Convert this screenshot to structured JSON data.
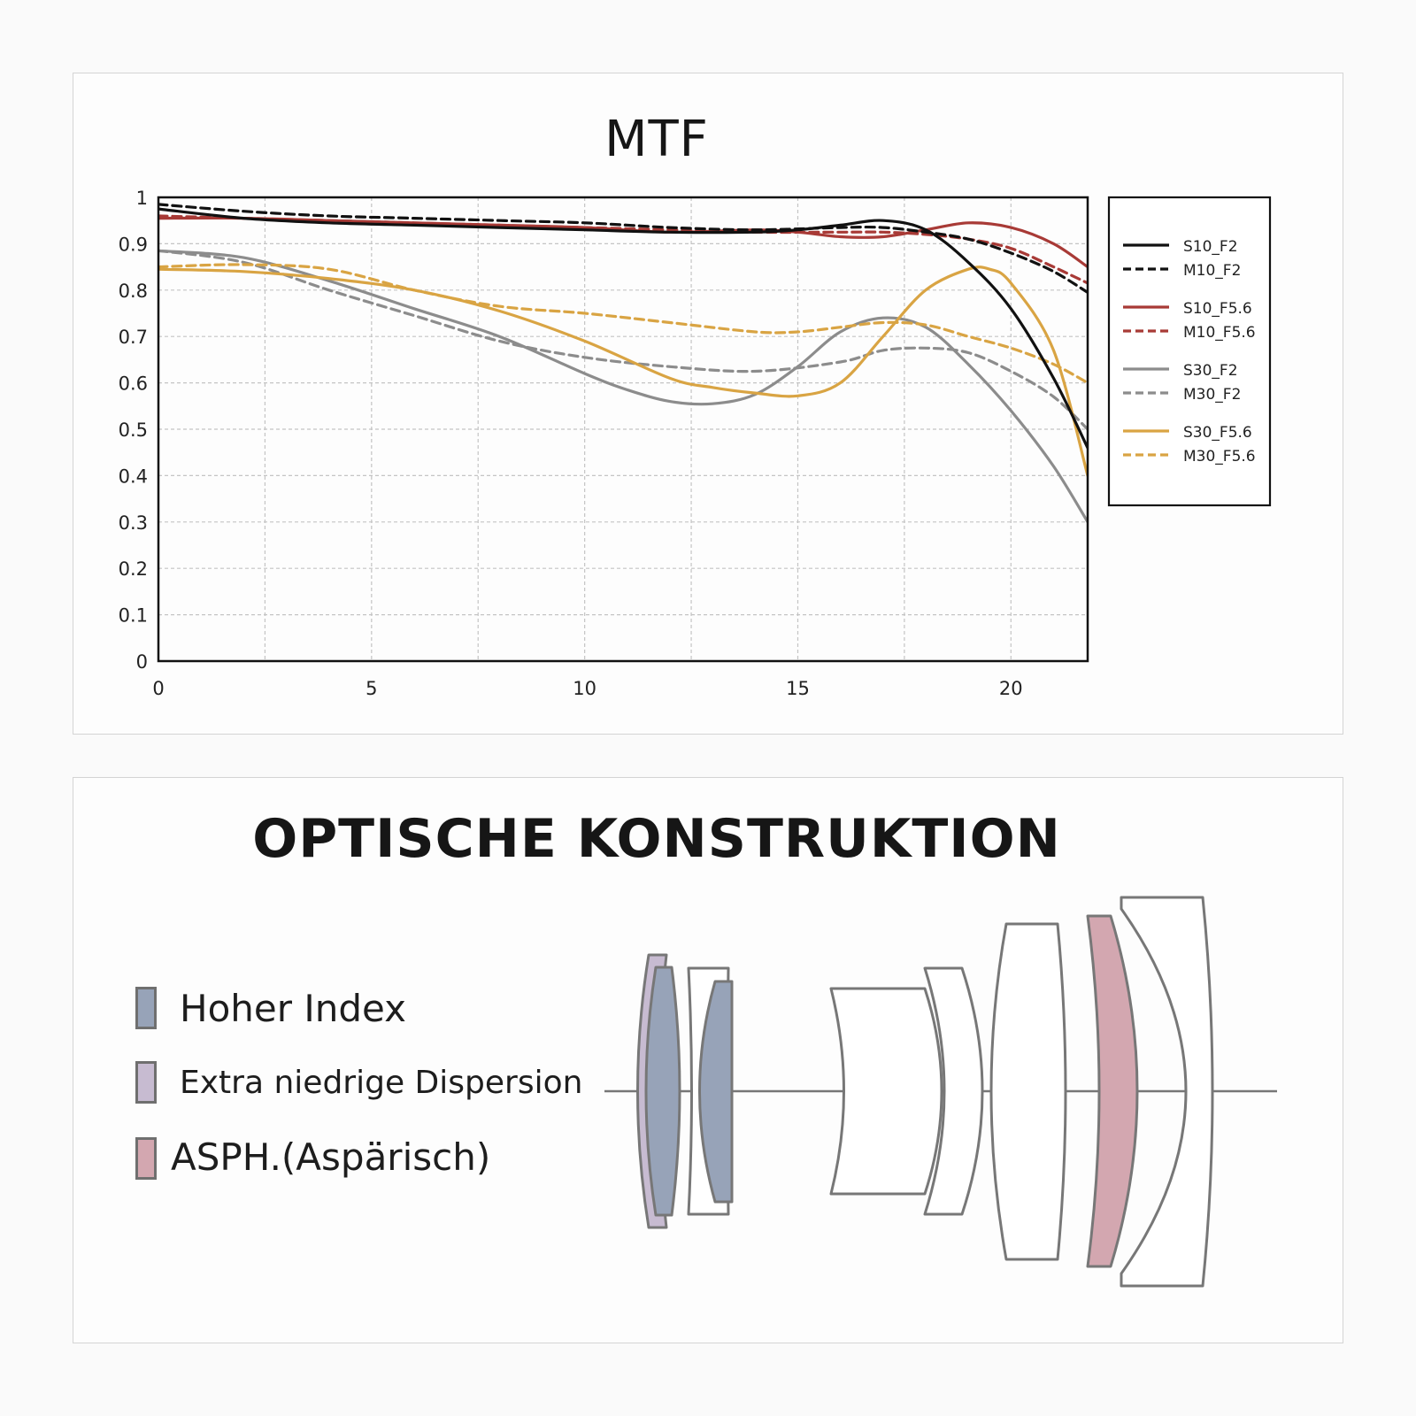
{
  "colors": {
    "S10_F2": "#111111",
    "M10_F2": "#111111",
    "S10_F5.6": "#a83a36",
    "M10_F5.6": "#a83a36",
    "S30_F2": "#8c8c8c",
    "M30_F2": "#8c8c8c",
    "S30_F5.6": "#d9a443",
    "M30_F5.6": "#d9a443",
    "high_index": "#97a3b8",
    "ed": "#c7bbd1",
    "asph": "#d3a7b0",
    "lens_outline": "#777777"
  },
  "chart_data": {
    "type": "line",
    "title": "MTF",
    "xlabel": "",
    "ylabel": "",
    "xlim": [
      0,
      21.8
    ],
    "ylim": [
      0,
      1
    ],
    "xticks": [
      0,
      5,
      10,
      15,
      20
    ],
    "xtick_labels": [
      "0",
      "5",
      "10",
      "15",
      "20"
    ],
    "yticks": [
      0,
      0.1,
      0.2,
      0.3,
      0.4,
      0.5,
      0.6,
      0.7,
      0.8,
      0.9,
      1
    ],
    "ytick_labels": [
      "0",
      "0.1",
      "0.2",
      "0.3",
      "0.4",
      "0.5",
      "0.6",
      "0.7",
      "0.8",
      "0.9",
      "1"
    ],
    "grid": true,
    "legend_position": "right",
    "series": [
      {
        "name": "S10_F2",
        "style": "solid",
        "x": [
          0,
          2,
          4,
          6,
          8,
          10,
          12,
          14,
          15,
          16,
          17,
          18,
          19,
          20,
          21,
          21.8
        ],
        "y": [
          0.975,
          0.955,
          0.945,
          0.94,
          0.935,
          0.93,
          0.925,
          0.925,
          0.93,
          0.94,
          0.95,
          0.93,
          0.86,
          0.76,
          0.61,
          0.46
        ]
      },
      {
        "name": "M10_F2",
        "style": "dashed",
        "x": [
          0,
          2,
          4,
          6,
          8,
          10,
          12,
          14,
          16,
          17,
          18,
          19,
          20,
          21,
          21.8
        ],
        "y": [
          0.985,
          0.97,
          0.96,
          0.955,
          0.95,
          0.945,
          0.935,
          0.93,
          0.935,
          0.935,
          0.925,
          0.91,
          0.88,
          0.84,
          0.795
        ]
      },
      {
        "name": "S10_F5.6",
        "style": "solid",
        "x": [
          0,
          2,
          4,
          6,
          8,
          10,
          12,
          14,
          15,
          16,
          17,
          18,
          19,
          20,
          21,
          21.8
        ],
        "y": [
          0.955,
          0.955,
          0.95,
          0.945,
          0.94,
          0.935,
          0.925,
          0.93,
          0.925,
          0.915,
          0.915,
          0.93,
          0.945,
          0.935,
          0.9,
          0.85
        ]
      },
      {
        "name": "M10_F5.6",
        "style": "dashed",
        "x": [
          0,
          2,
          4,
          6,
          8,
          10,
          12,
          14,
          16,
          17,
          18,
          19,
          20,
          21,
          21.8
        ],
        "y": [
          0.96,
          0.955,
          0.95,
          0.945,
          0.94,
          0.935,
          0.93,
          0.925,
          0.925,
          0.925,
          0.92,
          0.91,
          0.89,
          0.85,
          0.815
        ]
      },
      {
        "name": "S30_F2",
        "style": "solid",
        "x": [
          0,
          2,
          4,
          6,
          8,
          10,
          11,
          12,
          13,
          14,
          15,
          16,
          17,
          18,
          19,
          20,
          21,
          21.8
        ],
        "y": [
          0.885,
          0.87,
          0.82,
          0.76,
          0.7,
          0.62,
          0.585,
          0.56,
          0.555,
          0.575,
          0.635,
          0.71,
          0.74,
          0.72,
          0.64,
          0.54,
          0.42,
          0.3
        ]
      },
      {
        "name": "M30_F2",
        "style": "dashed",
        "x": [
          0,
          2,
          4,
          6,
          8,
          10,
          12,
          14,
          16,
          17,
          18,
          19,
          20,
          21,
          21.8
        ],
        "y": [
          0.885,
          0.86,
          0.8,
          0.745,
          0.69,
          0.655,
          0.635,
          0.625,
          0.645,
          0.67,
          0.675,
          0.665,
          0.625,
          0.57,
          0.5
        ]
      },
      {
        "name": "S30_F5.6",
        "style": "solid",
        "x": [
          0,
          2,
          4,
          6,
          8,
          10,
          12,
          13,
          14,
          15,
          16,
          17,
          18,
          19,
          19.5,
          20,
          21,
          21.8
        ],
        "y": [
          0.845,
          0.84,
          0.825,
          0.8,
          0.755,
          0.69,
          0.61,
          0.59,
          0.578,
          0.572,
          0.6,
          0.7,
          0.8,
          0.845,
          0.845,
          0.815,
          0.67,
          0.4
        ]
      },
      {
        "name": "M30_F5.6",
        "style": "dashed",
        "x": [
          0,
          2,
          4,
          6,
          8,
          10,
          12,
          14,
          15,
          16,
          17,
          18,
          19,
          20,
          21,
          21.8
        ],
        "y": [
          0.85,
          0.855,
          0.845,
          0.8,
          0.765,
          0.75,
          0.73,
          0.71,
          0.71,
          0.72,
          0.73,
          0.725,
          0.7,
          0.675,
          0.64,
          0.6
        ]
      }
    ]
  },
  "optics": {
    "title": "OPTISCHE KONSTRUKTION",
    "legend": [
      {
        "label": "Hoher Index",
        "color_key": "high_index"
      },
      {
        "label": "Extra niedrige Dispersion",
        "color_key": "ed"
      },
      {
        "label": "ASPH.(Aspärisch)",
        "color_key": "asph"
      }
    ]
  }
}
